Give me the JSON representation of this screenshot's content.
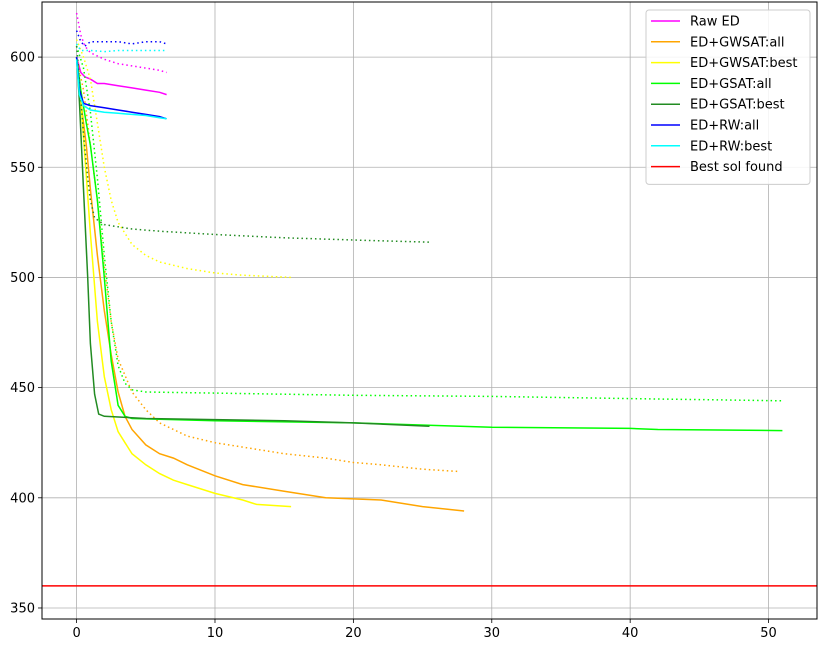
{
  "chart_data": {
    "type": "line",
    "title": "",
    "xlabel": "",
    "ylabel": "",
    "xlim": [
      -2.5,
      53.5
    ],
    "ylim": [
      345,
      625
    ],
    "xticks": [
      0,
      10,
      20,
      30,
      40,
      50
    ],
    "yticks": [
      350,
      400,
      450,
      500,
      550,
      600
    ],
    "grid": true,
    "legend_position": "top-right",
    "colors": {
      "raw": "#ff00ff",
      "gwsat_all": "#ffa500",
      "gwsat_best": "#ffff00",
      "gsat_all": "#00ff00",
      "gsat_best": "#228b22",
      "rw_all": "#0000ff",
      "rw_best": "#00ffff",
      "best_sol": "#ff0000"
    },
    "series": [
      {
        "name": "Raw ED",
        "color": "#ff00ff",
        "solid": [
          [
            0,
            600
          ],
          [
            0.3,
            593
          ],
          [
            0.6,
            591
          ],
          [
            1,
            590
          ],
          [
            1.5,
            588
          ],
          [
            2,
            588
          ],
          [
            3,
            587
          ],
          [
            4,
            586
          ],
          [
            5,
            585
          ],
          [
            6,
            584
          ],
          [
            6.5,
            583
          ]
        ],
        "dotted": [
          [
            0,
            620
          ],
          [
            0.3,
            610
          ],
          [
            0.6,
            605
          ],
          [
            1,
            602
          ],
          [
            2,
            599
          ],
          [
            3,
            597
          ],
          [
            4,
            596
          ],
          [
            5,
            595
          ],
          [
            6,
            594
          ],
          [
            6.5,
            593
          ]
        ]
      },
      {
        "name": "ED+GWSAT:all",
        "color": "#ffa500",
        "solid": [
          [
            0,
            600
          ],
          [
            0.3,
            580
          ],
          [
            0.7,
            560
          ],
          [
            1,
            540
          ],
          [
            1.5,
            510
          ],
          [
            2,
            485
          ],
          [
            2.5,
            465
          ],
          [
            3,
            448
          ],
          [
            3.5,
            437
          ],
          [
            4,
            431
          ],
          [
            5,
            424
          ],
          [
            6,
            420
          ],
          [
            7,
            418
          ],
          [
            8,
            415
          ],
          [
            10,
            410
          ],
          [
            12,
            406
          ],
          [
            15,
            403
          ],
          [
            18,
            400
          ],
          [
            20,
            399.5
          ],
          [
            22,
            399
          ],
          [
            25,
            396
          ],
          [
            28,
            394
          ]
        ],
        "dotted": [
          [
            0,
            600
          ],
          [
            0.5,
            585
          ],
          [
            1,
            560
          ],
          [
            1.5,
            535
          ],
          [
            2,
            505
          ],
          [
            2.5,
            480
          ],
          [
            3,
            463
          ],
          [
            4,
            448
          ],
          [
            5,
            440
          ],
          [
            6,
            434
          ],
          [
            8,
            428
          ],
          [
            10,
            425
          ],
          [
            12,
            423
          ],
          [
            15,
            420
          ],
          [
            18,
            418
          ],
          [
            20,
            416
          ],
          [
            22,
            415
          ],
          [
            25,
            413
          ],
          [
            27.5,
            412
          ]
        ]
      },
      {
        "name": "ED+GWSAT:best",
        "color": "#ffff00",
        "solid": [
          [
            0,
            600
          ],
          [
            0.3,
            580
          ],
          [
            0.6,
            555
          ],
          [
            1,
            520
          ],
          [
            1.5,
            480
          ],
          [
            2,
            455
          ],
          [
            2.5,
            440
          ],
          [
            3,
            430
          ],
          [
            3.5,
            425
          ],
          [
            4,
            420
          ],
          [
            5,
            415
          ],
          [
            6,
            411
          ],
          [
            7,
            408
          ],
          [
            8,
            406
          ],
          [
            10,
            402
          ],
          [
            12,
            399
          ],
          [
            13,
            397
          ],
          [
            15.5,
            396
          ]
        ],
        "dotted": [
          [
            0,
            608
          ],
          [
            0.5,
            600
          ],
          [
            1,
            590
          ],
          [
            1.5,
            570
          ],
          [
            2,
            550
          ],
          [
            2.5,
            535
          ],
          [
            3,
            525
          ],
          [
            4,
            515
          ],
          [
            5,
            510
          ],
          [
            6,
            507
          ],
          [
            8,
            504
          ],
          [
            10,
            502
          ],
          [
            12,
            501
          ],
          [
            15.5,
            500
          ]
        ]
      },
      {
        "name": "ED+GSAT:all",
        "color": "#00ff00",
        "solid": [
          [
            0,
            600
          ],
          [
            0.3,
            585
          ],
          [
            0.7,
            570
          ],
          [
            1,
            560
          ],
          [
            1.5,
            535
          ],
          [
            2,
            500
          ],
          [
            2.5,
            462
          ],
          [
            3,
            442
          ],
          [
            3.5,
            437
          ],
          [
            4,
            436
          ],
          [
            10,
            435
          ],
          [
            20,
            434
          ],
          [
            30,
            432
          ],
          [
            40,
            431.5
          ],
          [
            42,
            431
          ],
          [
            51,
            430.5
          ]
        ],
        "dotted": [
          [
            0,
            605
          ],
          [
            0.5,
            595
          ],
          [
            1,
            575
          ],
          [
            1.5,
            545
          ],
          [
            2,
            510
          ],
          [
            2.5,
            480
          ],
          [
            3,
            460
          ],
          [
            3.5,
            452
          ],
          [
            4,
            449
          ],
          [
            5,
            448
          ],
          [
            10,
            447.5
          ],
          [
            20,
            446.5
          ],
          [
            30,
            446
          ],
          [
            40,
            445
          ],
          [
            51,
            444
          ]
        ]
      },
      {
        "name": "ED+GSAT:best",
        "color": "#228b22",
        "solid": [
          [
            0,
            600
          ],
          [
            0.2,
            580
          ],
          [
            0.5,
            540
          ],
          [
            0.8,
            500
          ],
          [
            1,
            470
          ],
          [
            1.3,
            447
          ],
          [
            1.6,
            438
          ],
          [
            2,
            437
          ],
          [
            5,
            436
          ],
          [
            10,
            435.5
          ],
          [
            15,
            435
          ],
          [
            20,
            434
          ],
          [
            25.5,
            432.5
          ]
        ],
        "dotted": [
          [
            0,
            605
          ],
          [
            0.2,
            590
          ],
          [
            0.5,
            565
          ],
          [
            0.8,
            545
          ],
          [
            1,
            535
          ],
          [
            1.3,
            527
          ],
          [
            2,
            524
          ],
          [
            4,
            522
          ],
          [
            6,
            521
          ],
          [
            10,
            519.5
          ],
          [
            15,
            518
          ],
          [
            20,
            517
          ],
          [
            25.5,
            516
          ]
        ]
      },
      {
        "name": "ED+RW:all",
        "color": "#0000ff",
        "solid": [
          [
            0,
            600
          ],
          [
            0.2,
            585
          ],
          [
            0.5,
            579
          ],
          [
            1,
            578
          ],
          [
            2,
            577
          ],
          [
            3,
            576
          ],
          [
            4,
            575
          ],
          [
            5,
            574
          ],
          [
            6,
            573
          ],
          [
            6.5,
            572
          ]
        ],
        "dotted": [
          [
            0,
            612
          ],
          [
            0.3,
            607
          ],
          [
            0.6,
            605
          ],
          [
            1,
            607
          ],
          [
            2,
            607
          ],
          [
            3,
            607
          ],
          [
            4,
            606
          ],
          [
            5,
            607
          ],
          [
            6,
            607
          ],
          [
            6.5,
            606
          ]
        ]
      },
      {
        "name": "ED+RW:best",
        "color": "#00ffff",
        "solid": [
          [
            0,
            599
          ],
          [
            0.2,
            583
          ],
          [
            0.5,
            578
          ],
          [
            1,
            576
          ],
          [
            2,
            575
          ],
          [
            3,
            574.5
          ],
          [
            4,
            574
          ],
          [
            5,
            573.5
          ],
          [
            6,
            572.5
          ],
          [
            6.5,
            572
          ]
        ],
        "dotted": [
          [
            0,
            606
          ],
          [
            0.3,
            603
          ],
          [
            1,
            603
          ],
          [
            2,
            602.5
          ],
          [
            3,
            603
          ],
          [
            4,
            603
          ],
          [
            5,
            603
          ],
          [
            6,
            603
          ],
          [
            6.5,
            603
          ]
        ]
      },
      {
        "name": "Best sol found",
        "color": "#ff0000",
        "solid": [
          [
            -2.5,
            360
          ],
          [
            53.5,
            360
          ]
        ],
        "dotted": []
      }
    ]
  }
}
